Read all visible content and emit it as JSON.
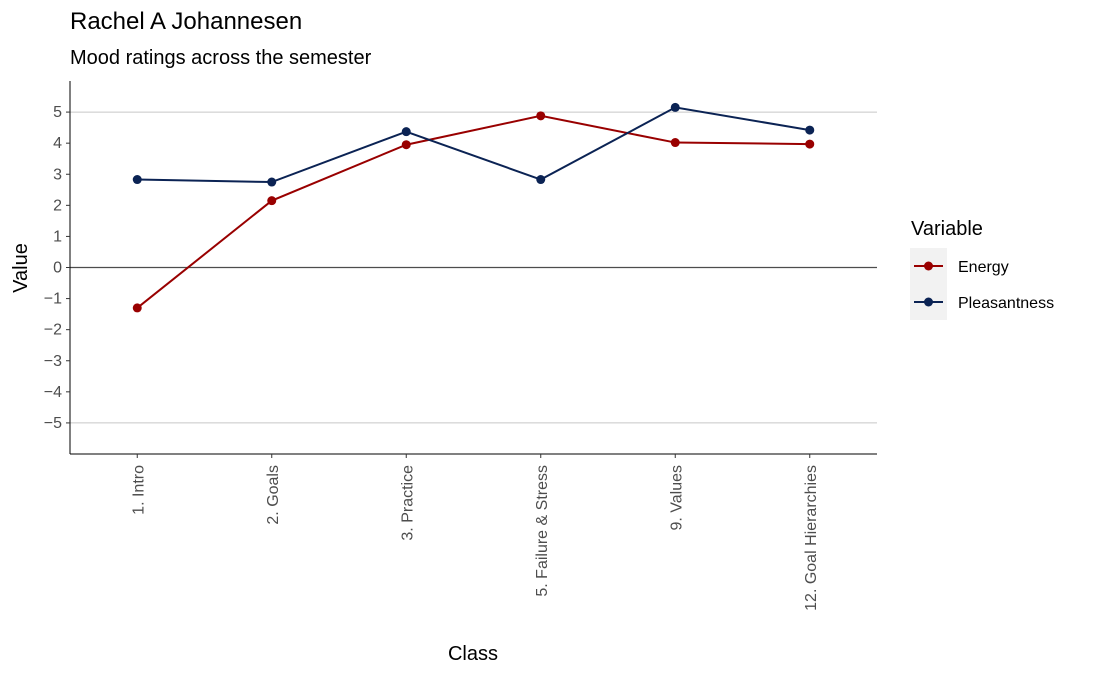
{
  "chart_data": {
    "type": "line",
    "title": "Rachel A Johannesen",
    "subtitle": "Mood ratings across the semester",
    "xlabel": "Class",
    "ylabel": "Value",
    "categories": [
      "1. Intro",
      "2. Goals",
      "3. Practice",
      "5. Failure & Stress",
      "9. Values",
      "12. Goal Hierarchies"
    ],
    "ylim": [
      -6,
      6
    ],
    "yticks": [
      "5",
      "4",
      "3",
      "2",
      "1",
      "0",
      "−1",
      "−2",
      "−3",
      "−4",
      "−5"
    ],
    "ytick_values": [
      5,
      4,
      3,
      2,
      1,
      0,
      -1,
      -2,
      -3,
      -4,
      -5
    ],
    "gridlines_at": [
      5,
      -5
    ],
    "reference_line": 0,
    "legend_title": "Variable",
    "legend_position": "right",
    "series": [
      {
        "name": "Energy",
        "color": "#990000",
        "values": [
          -1.3,
          2.15,
          3.95,
          4.88,
          4.02,
          3.97
        ]
      },
      {
        "name": "Pleasantness",
        "color": "#0b2354",
        "values": [
          2.83,
          2.75,
          4.37,
          2.83,
          5.15,
          4.42
        ]
      }
    ]
  }
}
